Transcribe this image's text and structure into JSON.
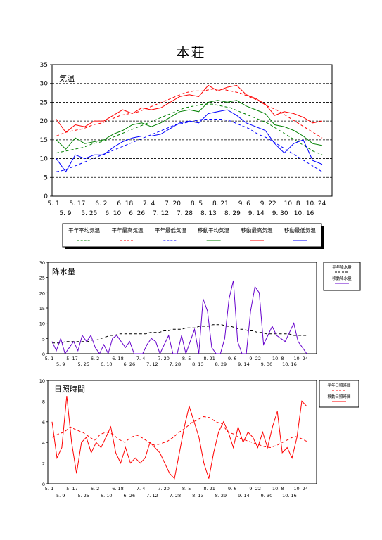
{
  "page": {
    "title": "本荘"
  },
  "colors": {
    "red": "#ff0000",
    "green": "#008000",
    "blue": "#0000ff",
    "purple": "#6600cc",
    "black": "#000000"
  },
  "chart_data": [
    {
      "type": "line",
      "title": "気温",
      "ylim": [
        0,
        35
      ],
      "yticks": [
        "0",
        "5",
        "10",
        "15",
        "20",
        "25",
        "30",
        "35"
      ],
      "grid": "dashed horizontal",
      "xticks_top": [
        "5. 1",
        "5. 17",
        "6. 2",
        "6. 18",
        "7. 4",
        "7. 20",
        "8. 5",
        "8. 21",
        "9. 6",
        "9. 22",
        "10. 8",
        "10. 24"
      ],
      "xticks_bottom": [
        "5. 9",
        "5. 25",
        "6. 10",
        "6. 26",
        "7. 12",
        "7. 28",
        "8. 13",
        "8. 29",
        "9. 14",
        "9. 30",
        "10. 16"
      ],
      "legend": [
        "平年平均気温",
        "平年最高気温",
        "平年最低気温",
        "移動平均気温",
        "移動最高気温",
        "移動最低気温"
      ],
      "series": [
        {
          "name": "平年平均気温",
          "style": "dashed",
          "color": "green",
          "values": [
            11.5,
            12,
            12.5,
            13,
            14,
            14.5,
            15.5,
            16.5,
            17.5,
            18.5,
            19.5,
            20.5,
            21.5,
            22.5,
            23.5,
            24,
            24.5,
            24.5,
            24,
            23.5,
            22.5,
            21.5,
            20.5,
            19.5,
            18,
            16.5,
            15,
            13.5,
            12,
            11
          ]
        },
        {
          "name": "平年最高気温",
          "style": "dashed",
          "color": "red",
          "values": [
            16,
            17,
            17.5,
            18,
            19,
            19.5,
            20.5,
            21.5,
            22,
            22.5,
            23.5,
            24.5,
            25.5,
            26.5,
            27.5,
            28,
            28,
            28.5,
            28.5,
            28,
            27.5,
            26.5,
            25.5,
            24,
            23,
            21.5,
            20,
            18.5,
            17,
            15.5
          ]
        },
        {
          "name": "平年最低気温",
          "style": "dashed",
          "color": "blue",
          "values": [
            6.5,
            7,
            8,
            9,
            10,
            11,
            12,
            13,
            14,
            15,
            16,
            17,
            18,
            19,
            19.5,
            20,
            20.5,
            20.5,
            20.5,
            20,
            19,
            18,
            16.5,
            15.5,
            14,
            12.5,
            11,
            9.5,
            8,
            6.5
          ]
        },
        {
          "name": "移動平均気温",
          "style": "solid",
          "color": "green",
          "values": [
            15,
            12.5,
            15.5,
            14,
            14.5,
            15,
            16.5,
            17.5,
            19,
            19.5,
            18.5,
            19.5,
            21,
            22.5,
            23,
            22.5,
            25,
            25.5,
            25,
            25.5,
            24,
            23,
            22,
            19,
            18.5,
            17.5,
            16,
            14,
            13.5
          ]
        },
        {
          "name": "移動最高気温",
          "style": "solid",
          "color": "red",
          "values": [
            20.5,
            17,
            19,
            18.5,
            20,
            20,
            21.5,
            23,
            22,
            23.5,
            23,
            23.5,
            25,
            26.5,
            27,
            26.5,
            29.5,
            28,
            29,
            29.5,
            27,
            26,
            24.5,
            21.5,
            22.5,
            22,
            21,
            19.5,
            20
          ]
        },
        {
          "name": "移動最低気温",
          "style": "solid",
          "color": "blue",
          "values": [
            10,
            6.5,
            11,
            10,
            11,
            11,
            13,
            14.5,
            15.5,
            16,
            16,
            16.5,
            18,
            19.5,
            20,
            19.5,
            22,
            22.5,
            23,
            21.5,
            19.5,
            18.5,
            17.5,
            14,
            11.5,
            14,
            15,
            9.5,
            8.5
          ]
        }
      ]
    },
    {
      "type": "line",
      "title": "降水量",
      "ylim": [
        0,
        30
      ],
      "yticks": [
        "0",
        "5",
        "10",
        "15",
        "20",
        "25",
        "30"
      ],
      "xticks_top": [
        "5. 1",
        "5. 17",
        "6. 2",
        "6. 18",
        "7. 4",
        "7. 20",
        "8. 5",
        "8. 21",
        "9. 6",
        "9. 22",
        "10. 8",
        "10. 24"
      ],
      "xticks_bottom": [
        "5. 9",
        "5. 25",
        "6. 10",
        "6. 26",
        "7. 12",
        "7. 28",
        "8. 13",
        "8. 29",
        "9. 14",
        "9. 30",
        "10. 16"
      ],
      "legend": [
        "平年降水量",
        "移動降水量"
      ],
      "series": [
        {
          "name": "平年降水量",
          "style": "dashed",
          "color": "black",
          "values": [
            3.5,
            3.5,
            3.5,
            4,
            4,
            4,
            4,
            4,
            4,
            4.5,
            4.5,
            5,
            5.5,
            6,
            6,
            6.5,
            6.5,
            6.5,
            6.5,
            6.5,
            6.5,
            6.5,
            7,
            7,
            7,
            7.5,
            7.5,
            8,
            8,
            8,
            8.5,
            8.5,
            8.5,
            9,
            9,
            9,
            9.5,
            9.5,
            9.5,
            9,
            9,
            8.5,
            8,
            8,
            7.5,
            7.5,
            7,
            7,
            6.5,
            6.5,
            6.5,
            6.5,
            6.5,
            6.5,
            6,
            6,
            6,
            6
          ]
        },
        {
          "name": "移動降水量",
          "style": "solid",
          "color": "purple",
          "values": [
            4,
            1,
            5,
            0,
            2,
            4,
            1,
            6,
            4,
            6,
            2,
            0,
            3,
            0,
            5,
            6,
            4,
            2,
            4,
            0,
            0,
            0,
            3,
            5,
            4,
            0,
            3,
            6,
            0,
            0,
            6,
            0,
            4,
            8,
            0,
            18,
            14,
            2,
            0,
            0,
            5,
            18,
            24,
            4,
            0,
            0,
            14,
            22,
            20,
            3,
            6,
            9,
            6,
            5,
            4,
            7,
            10,
            4,
            2,
            0
          ]
        }
      ]
    },
    {
      "type": "line",
      "title": "日照時間",
      "ylim": [
        0,
        10
      ],
      "yticks": [
        "0",
        "2",
        "4",
        "6",
        "8",
        "10"
      ],
      "xticks_top": [
        "5. 1",
        "5. 17",
        "6. 2",
        "6. 18",
        "7. 4",
        "7. 20",
        "8. 5",
        "8. 21",
        "9. 6",
        "9. 22",
        "10. 8",
        "10. 24"
      ],
      "xticks_bottom": [
        "5. 9",
        "5. 25",
        "6. 10",
        "6. 26",
        "7. 12",
        "7. 28",
        "8. 13",
        "8. 29",
        "9. 14",
        "9. 30",
        "10. 16"
      ],
      "legend": [
        "平年日照時間",
        "移動日照時間"
      ],
      "series": [
        {
          "name": "平年日照時間",
          "style": "dashed",
          "color": "red",
          "values": [
            4.5,
            4.8,
            5.0,
            5.5,
            5.2,
            5.0,
            4.6,
            4.2,
            4.8,
            5.0,
            4.8,
            4.3,
            4.0,
            4.5,
            4.7,
            4.4,
            4.0,
            3.7,
            3.9,
            4.1,
            4.5,
            5.0,
            5.4,
            5.9,
            6.2,
            6.5,
            6.4,
            6.0,
            5.8,
            5.0,
            4.8,
            4.4,
            4.2,
            4.0,
            3.8,
            3.6,
            3.5,
            3.7,
            4.0,
            4.3,
            4.6,
            4.4,
            4.1
          ]
        },
        {
          "name": "移動日照時間",
          "style": "solid",
          "color": "red",
          "values": [
            6,
            2.5,
            3.5,
            8.5,
            4,
            1,
            4,
            4.5,
            3,
            4,
            3.5,
            4.5,
            5.5,
            3,
            2,
            3.5,
            2,
            2.5,
            2,
            2.5,
            4,
            3.5,
            3,
            2,
            1,
            0.5,
            3,
            5.5,
            7.5,
            6,
            4.5,
            2,
            0.5,
            3,
            5,
            6,
            5,
            3.5,
            5.5,
            4,
            5,
            4.5,
            3.5,
            5,
            3.5,
            5.5,
            7,
            3,
            3.5,
            2.5,
            4.5,
            8,
            7.5
          ]
        }
      ]
    }
  ]
}
